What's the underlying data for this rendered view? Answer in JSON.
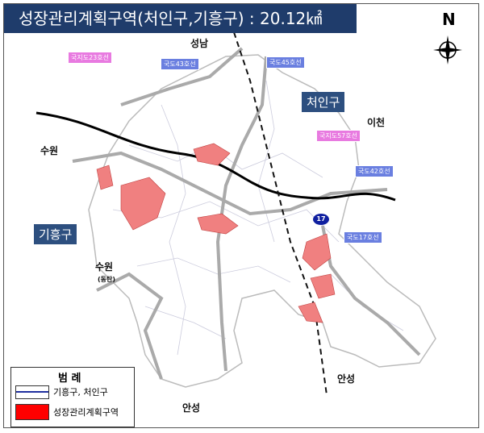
{
  "title": "성장관리계획구역(처인구,기흥구) : 20.12㎢",
  "compass": {
    "label": "N",
    "icon": "compass-rose-icon"
  },
  "districts": {
    "cheoin": "처인구",
    "giheung": "기흥구"
  },
  "places": {
    "seongnam": "성남",
    "icheon": "이천",
    "suwon_north": "수원",
    "suwon_dongtan": "수원",
    "dongtan": "(동탄)",
    "anseong_east": "안성",
    "anseong_south": "안성"
  },
  "routes": {
    "local23": "국지도23호선",
    "national43": "국도43호선",
    "national45": "국도45호선",
    "local57": "국지도57호선",
    "national42": "국도42호선",
    "national17": "국도17호선",
    "shield17": "17"
  },
  "legend": {
    "title": "범 례",
    "boundary": "기흥구, 처인구",
    "zone": "성장관리계획구역"
  },
  "colors": {
    "title_bg": "#1f3c6b",
    "zone": "#f08080",
    "local_route": "#e87ae0",
    "national_route": "#6a7fe0",
    "highway": "#000000"
  }
}
